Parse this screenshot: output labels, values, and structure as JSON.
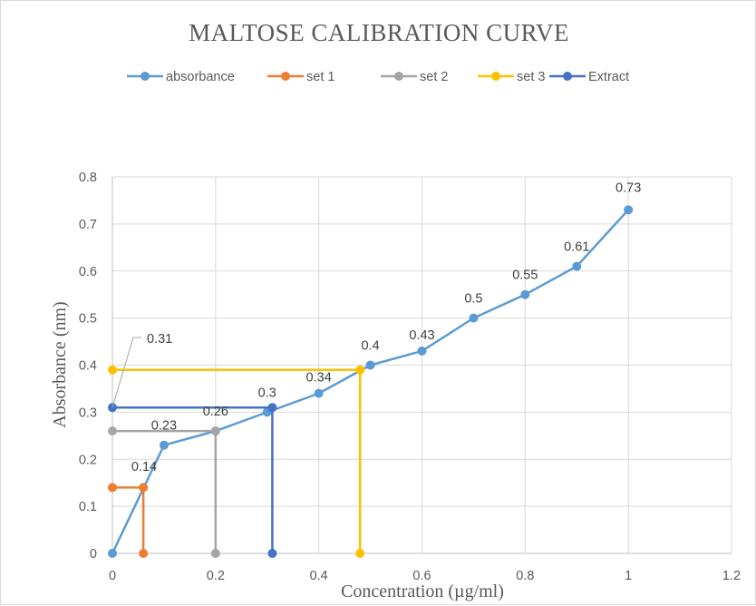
{
  "chart_data": {
    "type": "line",
    "title": "MALTOSE  CALIBRATION  CURVE",
    "xlabel": "Concentration (µg/ml)",
    "ylabel": "Absorbance (nm)",
    "xlim": [
      0,
      1.2
    ],
    "ylim": [
      0,
      0.8
    ],
    "x_ticks": [
      "0",
      "0.2",
      "0.4",
      "0.6",
      "0.8",
      "1",
      "1.2"
    ],
    "y_ticks": [
      "0",
      "0.1",
      "0.2",
      "0.3",
      "0.4",
      "0.5",
      "0.6",
      "0.7",
      "0.8"
    ],
    "grid": true,
    "legend_position": "top",
    "series": [
      {
        "name": "absorbance",
        "color": "#5B9BD5",
        "x": [
          0,
          0.1,
          0.2,
          0.3,
          0.4,
          0.5,
          0.6,
          0.7,
          0.8,
          0.9,
          1
        ],
        "y": [
          0,
          0.23,
          0.26,
          0.3,
          0.34,
          0.4,
          0.43,
          0.5,
          0.55,
          0.61,
          0.73
        ],
        "labels": [
          "",
          "0.23",
          "0.26",
          "0.3",
          "0.34",
          "0.4",
          "0.43",
          "0.5",
          "0.55",
          "0.61",
          "0.73"
        ]
      },
      {
        "name": "set 1",
        "color": "#ED7D31",
        "x": [
          0,
          0.06,
          0.06
        ],
        "y": [
          0.14,
          0.14,
          0
        ],
        "labels": [
          "",
          "0.14",
          ""
        ]
      },
      {
        "name": "set 2",
        "color": "#A5A5A5",
        "x": [
          0,
          0.2,
          0.2
        ],
        "y": [
          0.26,
          0.26,
          0
        ],
        "labels": [
          "",
          "",
          ""
        ]
      },
      {
        "name": "set 3",
        "color": "#FFC000",
        "x": [
          0,
          0.48,
          0.48
        ],
        "y": [
          0.39,
          0.39,
          0
        ],
        "labels": [
          "",
          "",
          ""
        ]
      },
      {
        "name": "Extract",
        "color": "#4472C4",
        "x": [
          0,
          0.31,
          0.31
        ],
        "y": [
          0.31,
          0.31,
          0
        ],
        "labels": [
          "0.31",
          "",
          ""
        ]
      }
    ]
  }
}
